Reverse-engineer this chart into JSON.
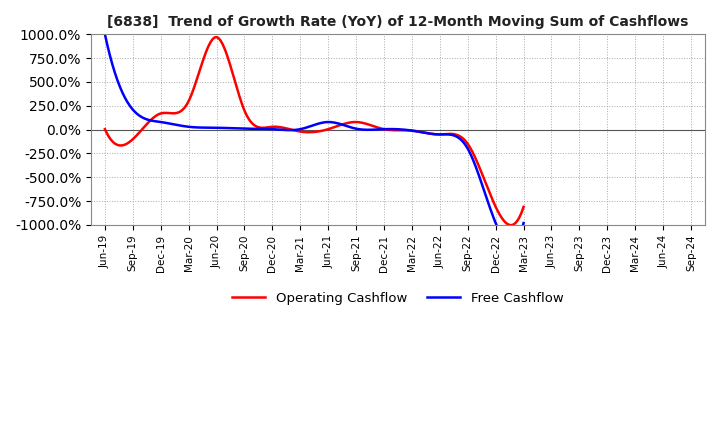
{
  "title": "[6838]  Trend of Growth Rate (YoY) of 12-Month Moving Sum of Cashflows",
  "ylim": [
    -1000,
    1000
  ],
  "yticks": [
    1000,
    750,
    500,
    250,
    0,
    -250,
    -500,
    -750,
    -1000
  ],
  "background_color": "#ffffff",
  "grid_color": "#aaaaaa",
  "operating_color": "#ff0000",
  "free_color": "#0000ff",
  "legend_labels": [
    "Operating Cashflow",
    "Free Cashflow"
  ],
  "x_labels": [
    "Jun-19",
    "Sep-19",
    "Dec-19",
    "Mar-20",
    "Jun-20",
    "Sep-20",
    "Dec-20",
    "Mar-21",
    "Jun-21",
    "Sep-21",
    "Dec-21",
    "Mar-22",
    "Jun-22",
    "Sep-22",
    "Dec-22",
    "Mar-23",
    "Jun-23",
    "Sep-23",
    "Dec-23",
    "Mar-24",
    "Jun-24",
    "Sep-24"
  ],
  "operating_cashflow_x": [
    0,
    1,
    2,
    3,
    4,
    5,
    6,
    7,
    8,
    9,
    10,
    11,
    12,
    13,
    14,
    15
  ],
  "operating_cashflow_y": [
    5,
    -100,
    170,
    300,
    970,
    200,
    30,
    -20,
    5,
    80,
    5,
    -10,
    -50,
    -150,
    -810,
    -810
  ],
  "free_cashflow_x": [
    0,
    1,
    2,
    3,
    4,
    5,
    6,
    7,
    8,
    9,
    10,
    11,
    12,
    13,
    14,
    15
  ],
  "free_cashflow_y": [
    1000,
    210,
    80,
    30,
    20,
    10,
    5,
    5,
    80,
    10,
    5,
    -10,
    -50,
    -200,
    -980,
    -980
  ]
}
